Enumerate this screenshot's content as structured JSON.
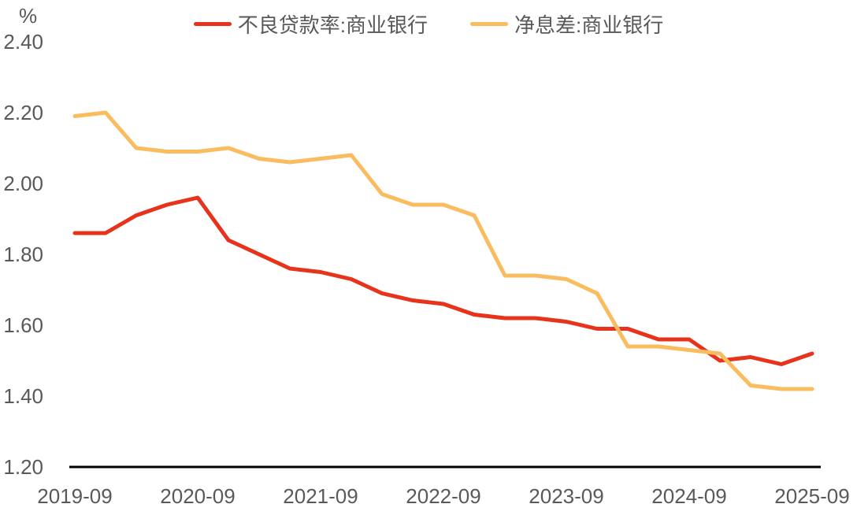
{
  "chart_data": {
    "type": "line",
    "title": "",
    "unit_label": "%",
    "xlabel": "",
    "ylabel": "%",
    "ylim": [
      1.2,
      2.4
    ],
    "grid": false,
    "legend_position": "top-center",
    "axis_text_color": "#595959",
    "axis_line_color": "#000000",
    "y_ticks": [
      "2.40",
      "2.20",
      "2.00",
      "1.80",
      "1.60",
      "1.40",
      "1.20"
    ],
    "x": [
      "2019-09",
      "2019-12",
      "2020-03",
      "2020-06",
      "2020-09",
      "2020-12",
      "2021-03",
      "2021-06",
      "2021-09",
      "2021-12",
      "2022-03",
      "2022-06",
      "2022-09",
      "2022-12",
      "2023-03",
      "2023-06",
      "2023-09",
      "2023-12",
      "2024-03",
      "2024-06",
      "2024-09",
      "2024-12",
      "2025-03",
      "2025-06",
      "2025-09"
    ],
    "x_tick_labels": [
      "2019-09",
      "2020-09",
      "2021-09",
      "2022-09",
      "2023-09",
      "2024-09",
      "2025-09"
    ],
    "x_tick_every": 4,
    "series": [
      {
        "name": "不良贷款率:商业银行",
        "color": "#E8331C",
        "values": [
          1.86,
          1.86,
          1.91,
          1.94,
          1.96,
          1.84,
          1.8,
          1.76,
          1.75,
          1.73,
          1.69,
          1.67,
          1.66,
          1.63,
          1.62,
          1.62,
          1.61,
          1.59,
          1.59,
          1.56,
          1.56,
          1.5,
          1.51,
          1.49,
          1.52
        ]
      },
      {
        "name": "净息差:商业银行",
        "color": "#F9BD5F",
        "values": [
          2.19,
          2.2,
          2.1,
          2.09,
          2.09,
          2.1,
          2.07,
          2.06,
          2.07,
          2.08,
          1.97,
          1.94,
          1.94,
          1.91,
          1.74,
          1.74,
          1.73,
          1.69,
          1.54,
          1.54,
          1.53,
          1.52,
          1.43,
          1.42,
          1.42
        ]
      }
    ]
  }
}
